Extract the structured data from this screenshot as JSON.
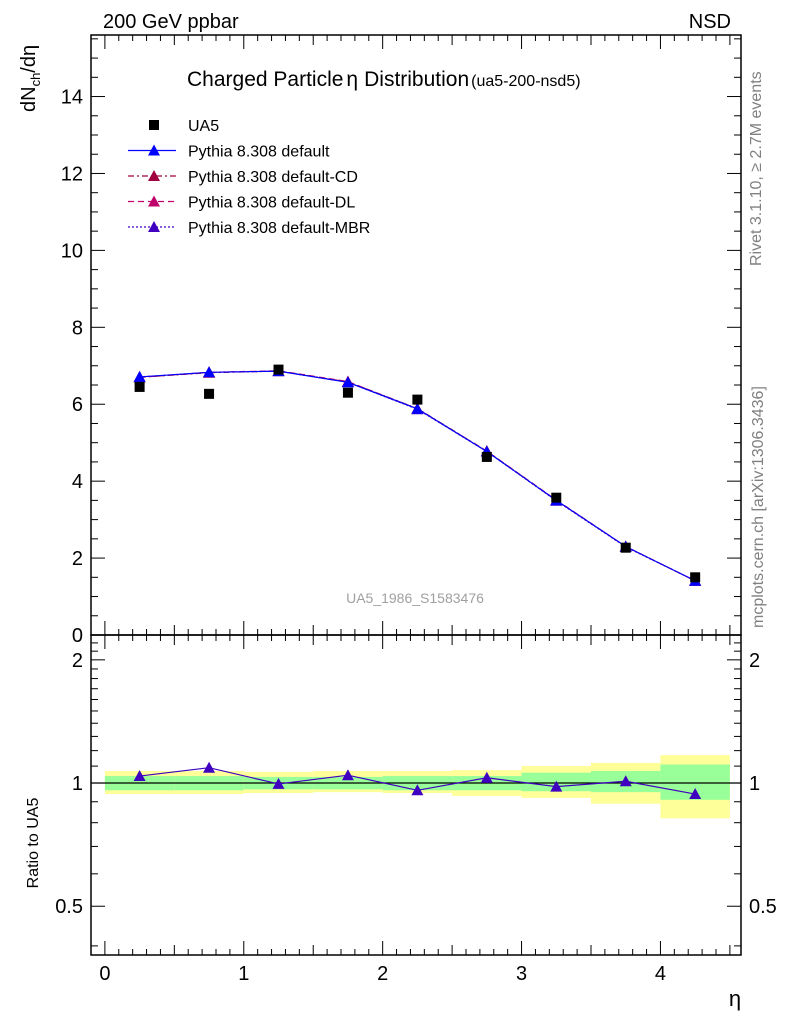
{
  "corner_left": "200 GeV ppbar",
  "corner_right": "NSD",
  "side_text_top": "Rivet 3.1.10, ≥ 2.7M events",
  "side_text_bottom": "mcplots.cern.ch [arXiv:1306.3436]",
  "watermark": "UA5_1986_S1583476",
  "colors": {
    "data": "#000000",
    "default": "#0000ff",
    "cd": "#a00040",
    "dl": "#c0006a",
    "mbr": "#4000c0",
    "band_inner": "#99ff99",
    "band_outer": "#ffff99"
  },
  "chart_data": [
    {
      "type": "line",
      "title": "Charged Particle",
      "title_symbol": "η",
      "title_suffix": "Distribution",
      "subtitle": "(ua5-200-nsd5)",
      "ylabel_main": "dN",
      "ylabel_sub": "ch",
      "ylabel_tail": "/dη",
      "xlim": [
        -0.1,
        4.58
      ],
      "ylim": [
        0,
        15.6
      ],
      "yticks": [
        0,
        2,
        4,
        6,
        8,
        10,
        12,
        14
      ],
      "ytick_labels": [
        "0",
        "2",
        "4",
        "6",
        "8",
        "10",
        "12",
        "14"
      ],
      "x": [
        0.25,
        0.75,
        1.25,
        1.75,
        2.25,
        2.75,
        3.25,
        3.75,
        4.25
      ],
      "series": [
        {
          "name": "UA5",
          "style": "data",
          "values": [
            6.45,
            6.27,
            6.9,
            6.3,
            6.12,
            4.63,
            3.57,
            2.27,
            1.5
          ]
        },
        {
          "name": "Pythia 8.308 default",
          "style": "solid",
          "values": [
            6.71,
            6.83,
            6.86,
            6.57,
            5.88,
            4.77,
            3.5,
            2.3,
            1.41
          ]
        },
        {
          "name": "Pythia 8.308 default-CD",
          "style": "dashdot",
          "values": [
            6.7,
            6.82,
            6.86,
            6.58,
            5.89,
            4.78,
            3.5,
            2.3,
            1.41
          ]
        },
        {
          "name": "Pythia 8.308 default-DL",
          "style": "dashed",
          "values": [
            6.7,
            6.83,
            6.87,
            6.59,
            5.88,
            4.78,
            3.51,
            2.3,
            1.41
          ]
        },
        {
          "name": "Pythia 8.308 default-MBR",
          "style": "dotted",
          "values": [
            6.71,
            6.83,
            6.86,
            6.57,
            5.87,
            4.77,
            3.49,
            2.29,
            1.41
          ]
        }
      ],
      "legend_position": "top-left",
      "grid": false
    },
    {
      "type": "line",
      "ylabel": "Ratio to UA5",
      "xlabel": "η",
      "xlim": [
        -0.1,
        4.58
      ],
      "ylim": [
        0.38,
        2.3
      ],
      "log_y": true,
      "xticks": [
        0,
        1,
        2,
        3,
        4
      ],
      "xtick_labels": [
        "0",
        "1",
        "2",
        "3",
        "4"
      ],
      "yticks": [
        0.5,
        1,
        2
      ],
      "ytick_labels": [
        "0.5",
        "1",
        "2"
      ],
      "bins": [
        [
          0,
          0.5
        ],
        [
          0.5,
          1
        ],
        [
          1,
          1.5
        ],
        [
          1.5,
          2
        ],
        [
          2,
          2.5
        ],
        [
          2.5,
          3
        ],
        [
          3,
          3.5
        ],
        [
          3.5,
          4
        ],
        [
          4,
          4.5
        ]
      ],
      "band_inner": [
        [
          0.96,
          1.04
        ],
        [
          0.96,
          1.04
        ],
        [
          0.965,
          1.035
        ],
        [
          0.965,
          1.035
        ],
        [
          0.96,
          1.04
        ],
        [
          0.96,
          1.04
        ],
        [
          0.955,
          1.06
        ],
        [
          0.95,
          1.07
        ],
        [
          0.91,
          1.11
        ]
      ],
      "band_outer": [
        [
          0.94,
          1.07
        ],
        [
          0.94,
          1.07
        ],
        [
          0.945,
          1.065
        ],
        [
          0.95,
          1.07
        ],
        [
          0.945,
          1.07
        ],
        [
          0.93,
          1.075
        ],
        [
          0.92,
          1.1
        ],
        [
          0.89,
          1.12
        ],
        [
          0.82,
          1.17
        ]
      ],
      "x": [
        0.25,
        0.75,
        1.25,
        1.75,
        2.25,
        2.75,
        3.25,
        3.75,
        4.25
      ],
      "ratio_values": [
        1.04,
        1.09,
        0.995,
        1.045,
        0.96,
        1.03,
        0.98,
        1.01,
        0.94
      ],
      "reference_line": 1
    }
  ]
}
